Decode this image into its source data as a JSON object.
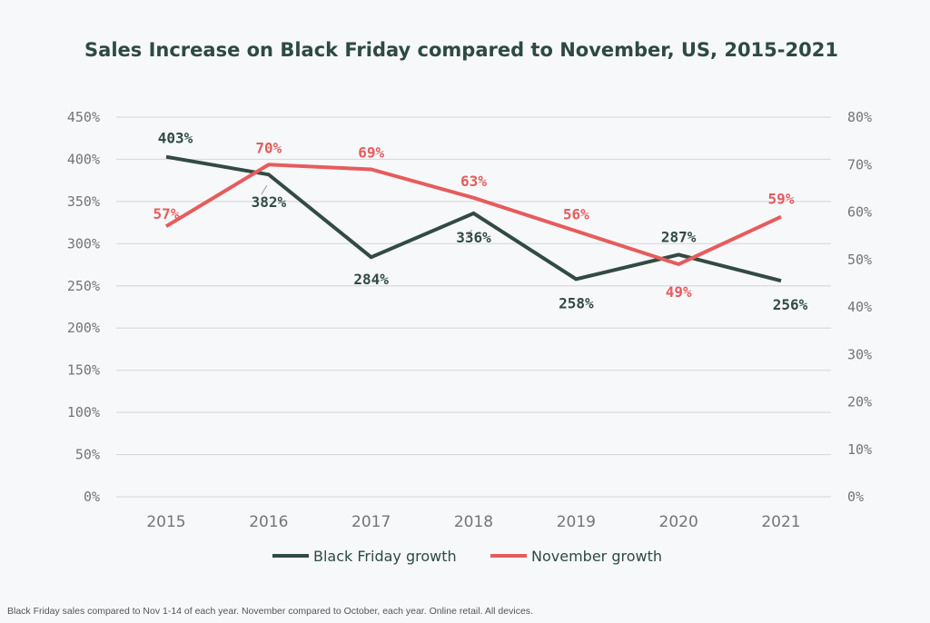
{
  "colors": {
    "background": "#f7f8fa",
    "title": "#2d4a42",
    "axis_text": "#757575",
    "grid": "#d9dadf",
    "black_friday": "#324a44",
    "november": "#e65c5c",
    "footnote": "#555555"
  },
  "chart_data": {
    "type": "line",
    "title": "Sales Increase on Black Friday compared to November, US, 2015-2021",
    "categories": [
      "2015",
      "2016",
      "2017",
      "2018",
      "2019",
      "2020",
      "2021"
    ],
    "y_left": {
      "lim": [
        0,
        450
      ],
      "ticks": [
        0,
        50,
        100,
        150,
        200,
        250,
        300,
        350,
        400,
        450
      ],
      "tick_labels": [
        "0%",
        "50%",
        "100%",
        "150%",
        "200%",
        "250%",
        "300%",
        "350%",
        "400%",
        "450%"
      ]
    },
    "y_right": {
      "lim": [
        0,
        80
      ],
      "ticks": [
        0,
        10,
        20,
        30,
        40,
        50,
        60,
        70,
        80
      ],
      "tick_labels": [
        "0%",
        "10%",
        "20%",
        "30%",
        "40%",
        "50%",
        "60%",
        "70%",
        "80%"
      ]
    },
    "grid": true,
    "legend_position": "bottom",
    "series": [
      {
        "name": "Black Friday growth",
        "axis": "left",
        "color": "#324a44",
        "values": [
          403,
          382,
          284,
          336,
          258,
          287,
          256
        ],
        "labels": [
          "403%",
          "382%",
          "284%",
          "336%",
          "258%",
          "287%",
          "256%"
        ]
      },
      {
        "name": "November growth",
        "axis": "right",
        "color": "#e65c5c",
        "values": [
          57,
          70,
          69,
          63,
          56,
          49,
          59
        ],
        "labels": [
          "57%",
          "70%",
          "69%",
          "63%",
          "56%",
          "49%",
          "59%"
        ]
      }
    ],
    "footnote": "Black Friday sales compared to Nov 1-14 of each year. November compared to October, each year. Online retail. All devices."
  }
}
